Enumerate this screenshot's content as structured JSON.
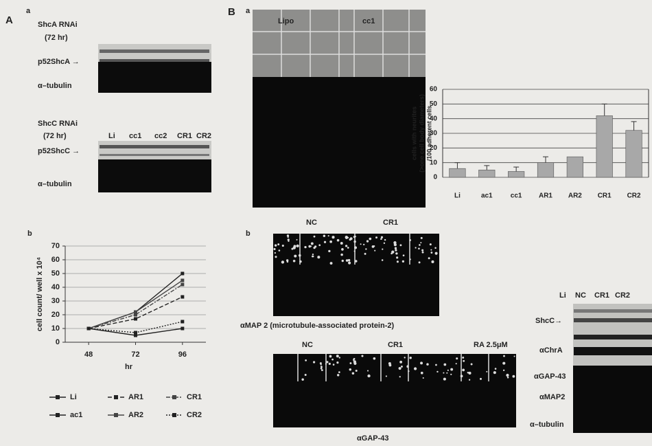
{
  "panel_a": {
    "label": "A",
    "sub_a": "a",
    "shca_title": "ShcA RNAi",
    "shca_time": "(72 hr)",
    "shca_band": "p52ShcA →",
    "shca_tubulin": "α–tubulin",
    "shcc_title": "ShcC RNAi",
    "shcc_time": "(72 hr)",
    "shcc_lanes": [
      "Li",
      "cc1",
      "cc2",
      "CR1",
      "CR2"
    ],
    "shcc_band": "p52ShcC →",
    "shcc_tubulin": "α–tubulin",
    "sub_b": "b"
  },
  "panel_b": {
    "label": "B",
    "sub_a": "a",
    "img_labels": [
      "Lipo",
      "cc1"
    ],
    "sub_b": "b",
    "map2_labels": [
      "NC",
      "CR1"
    ],
    "map2_caption": "αMAP 2 (microtubule-associated protein-2)",
    "gap43_labels": [
      "NC",
      "CR1",
      "RA 2.5μM"
    ],
    "gap43_caption": "αGAP-43",
    "blot_lanes": [
      "Li",
      "NC",
      "CR1",
      "CR2"
    ],
    "blot_rows": [
      "ShcC→",
      "αChrA",
      "αGAP-43",
      "αMAP2",
      "α–tubulin"
    ]
  },
  "chart_data": [
    {
      "type": "line",
      "xlabel": "hr",
      "ylabel": "cell count/ well x 10⁴",
      "x": [
        48,
        72,
        96
      ],
      "xlim": [
        36,
        108
      ],
      "xticks": [
        48,
        72,
        96
      ],
      "ylim": [
        0,
        70
      ],
      "yticks": [
        0,
        10,
        20,
        30,
        40,
        50,
        60,
        70
      ],
      "grid": true,
      "series": [
        {
          "name": "Li",
          "color": "#222",
          "dash": "solid",
          "values": [
            10,
            22,
            50
          ]
        },
        {
          "name": "ac1",
          "color": "#222",
          "dash": "solid",
          "values": [
            10,
            5,
            10
          ]
        },
        {
          "name": "AR1",
          "color": "#222",
          "dash": "dashed",
          "values": [
            10,
            17,
            33
          ]
        },
        {
          "name": "AR2",
          "color": "#444",
          "dash": "solid",
          "values": [
            10,
            22,
            45
          ]
        },
        {
          "name": "CR1",
          "color": "#444",
          "dash": "dashdot",
          "values": [
            10,
            20,
            42
          ]
        },
        {
          "name": "CR2",
          "color": "#222",
          "dash": "dotted",
          "values": [
            10,
            7,
            15
          ]
        }
      ]
    },
    {
      "type": "bar",
      "ylabel": [
        "cells with neurites",
        "(>one cell body diameters)",
        "/100 adherent cells"
      ],
      "categories": [
        "Li",
        "ac1",
        "cc1",
        "AR1",
        "AR2",
        "CR1",
        "CR2"
      ],
      "values": [
        6,
        5,
        4,
        10,
        14,
        42,
        32
      ],
      "errors": [
        4,
        3,
        3,
        4,
        0,
        8,
        6
      ],
      "color": "#a8a8a8",
      "ylim": [
        0,
        60
      ],
      "yticks": [
        0,
        10,
        20,
        30,
        40,
        50,
        60
      ],
      "grid": true
    }
  ]
}
